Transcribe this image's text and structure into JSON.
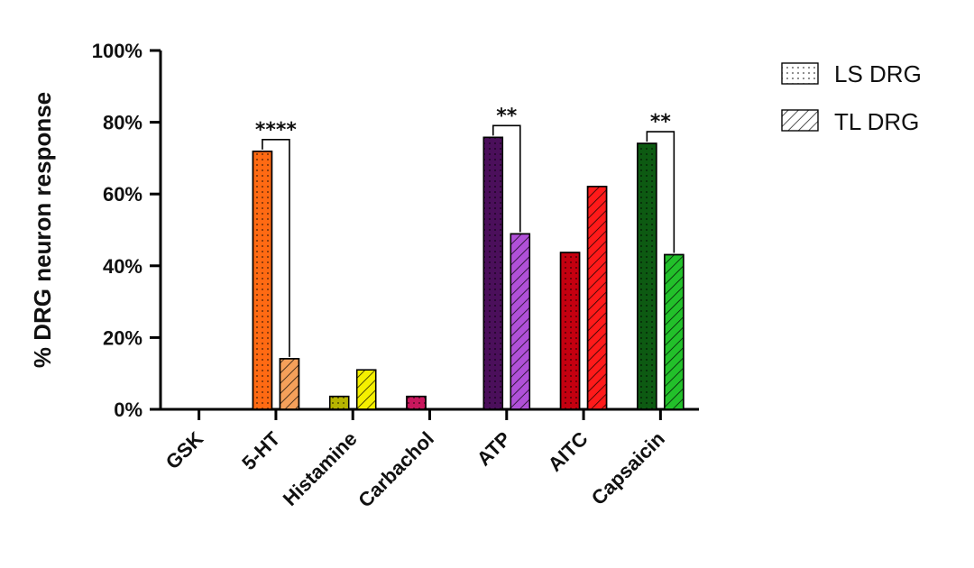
{
  "chart_data": {
    "type": "bar",
    "ylabel": "% DRG neuron response",
    "ylim": [
      0,
      100
    ],
    "y_ticks": [
      "0%",
      "20%",
      "40%",
      "60%",
      "80%",
      "100%"
    ],
    "y_tick_values": [
      0,
      20,
      40,
      60,
      80,
      100
    ],
    "categories": [
      "GSK",
      "5-HT",
      "Histamine",
      "Carbachol",
      "ATP",
      "AITC",
      "Capsaicin"
    ],
    "series": [
      {
        "name": "LS DRG",
        "pattern": "dots",
        "values": [
          0,
          71.9,
          3.6,
          3.6,
          75.8,
          43.7,
          74.1
        ],
        "colors": [
          "#ffffff",
          "#ff6a13",
          "#b7b400",
          "#c8175d",
          "#4b0f5b",
          "#c40010",
          "#0d5a12"
        ]
      },
      {
        "name": "TL DRG",
        "pattern": "hatch",
        "values": [
          0,
          14.1,
          11.0,
          0,
          48.9,
          62.1,
          43.1
        ],
        "colors": [
          "#ffffff",
          "#f5a05a",
          "#f5f000",
          "#e04080",
          "#b050d8",
          "#ff1a1a",
          "#22c02a"
        ]
      }
    ],
    "significance": [
      {
        "category": "5-HT",
        "label": "****"
      },
      {
        "category": "ATP",
        "label": "**"
      },
      {
        "category": "Capsaicin",
        "label": "**"
      }
    ],
    "legend_position": "top-right",
    "grid": false
  }
}
